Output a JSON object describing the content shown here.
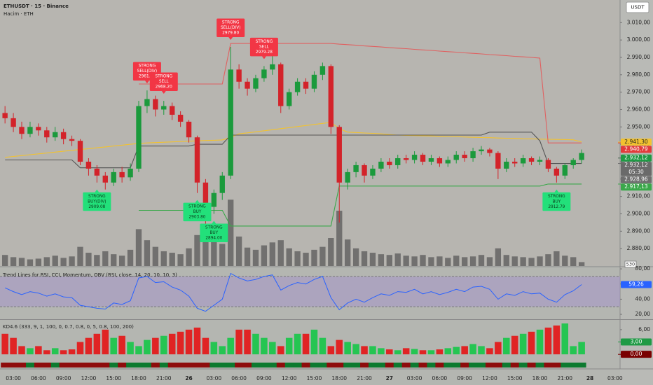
{
  "chart_data": [
    {
      "type": "candlestick",
      "title": "ETHUSDT · 15 · Binance",
      "subtitle": "Hacim · ETH",
      "currency": "USDT",
      "up_color": "#1b9a3c",
      "down_color": "#d3232a",
      "volume_color": "#5a5a5a",
      "xlim": [
        -0.6,
        73.6
      ],
      "xticks": [
        {
          "value": 1,
          "label": "03:00"
        },
        {
          "value": 4,
          "label": "06:00"
        },
        {
          "value": 7,
          "label": "09:00"
        },
        {
          "value": 10,
          "label": "12:00"
        },
        {
          "value": 13,
          "label": "15:00"
        },
        {
          "value": 16,
          "label": "18:00"
        },
        {
          "value": 19,
          "label": "21:00"
        },
        {
          "value": 22,
          "label": "26"
        },
        {
          "value": 25,
          "label": "03:00"
        },
        {
          "value": 28,
          "label": "06:00"
        },
        {
          "value": 31,
          "label": "09:00"
        },
        {
          "value": 34,
          "label": "12:00"
        },
        {
          "value": 37,
          "label": "15:00"
        },
        {
          "value": 40,
          "label": "18:00"
        },
        {
          "value": 43,
          "label": "21:00"
        },
        {
          "value": 46,
          "label": "27"
        },
        {
          "value": 49,
          "label": "03:00"
        },
        {
          "value": 52,
          "label": "06:00"
        },
        {
          "value": 55,
          "label": "09:00"
        },
        {
          "value": 58,
          "label": "12:00"
        },
        {
          "value": 61,
          "label": "15:00"
        },
        {
          "value": 64,
          "label": "18:00"
        },
        {
          "value": 67,
          "label": "21:00"
        },
        {
          "value": 70,
          "label": "28"
        },
        {
          "value": 73,
          "label": "03:00"
        }
      ],
      "ylim": [
        2870,
        3023
      ],
      "yticks": [
        {
          "value": 2880,
          "label": "2.880,00"
        },
        {
          "value": 2890,
          "label": "2.890,00"
        },
        {
          "value": 2900,
          "label": "2.900,00"
        },
        {
          "value": 2910,
          "label": "2.910,00"
        },
        {
          "value": 2920,
          "label": "2.920,00"
        },
        {
          "value": 2930,
          "label": "2.930,00"
        },
        {
          "value": 2940,
          "label": "2.940,00"
        },
        {
          "value": 2950,
          "label": "2.950,00"
        },
        {
          "value": 2960,
          "label": "2.960,00"
        },
        {
          "value": 2970,
          "label": "2.970,00"
        },
        {
          "value": 2980,
          "label": "2.980,00"
        },
        {
          "value": 2990,
          "label": "2.990,00"
        },
        {
          "value": 3000,
          "label": "3.000,00"
        },
        {
          "value": 3010,
          "label": "3.010,00"
        }
      ],
      "open": [
        2958,
        2955,
        2950,
        2946,
        2950,
        2948,
        2944,
        2947,
        2943,
        2942,
        2930,
        2926,
        2922,
        2918,
        2924,
        2921,
        2926,
        2962,
        2966,
        2960,
        2962,
        2957,
        2953,
        2944,
        2918,
        2904,
        2912,
        2922,
        2983,
        2976,
        2972,
        2978,
        2983,
        2986,
        2962,
        2970,
        2976,
        2972,
        2980,
        2985,
        2950,
        2918,
        2924,
        2928,
        2922,
        2926,
        2930,
        2928,
        2932,
        2931,
        2934,
        2930,
        2932,
        2929,
        2931,
        2934,
        2932,
        2936,
        2937,
        2935,
        2926,
        2930,
        2929,
        2932,
        2930,
        2931,
        2926,
        2922,
        2928,
        2931
      ],
      "high": [
        2962,
        2958,
        2953,
        2953,
        2952,
        2950,
        2950,
        2949,
        2945,
        2943,
        2932,
        2928,
        2924,
        2926,
        2927,
        2929,
        2965,
        2971,
        2968,
        2965,
        2964,
        2959,
        2954,
        2945,
        2920,
        2914,
        2924,
        2996,
        2986,
        2978,
        2980,
        2985,
        2993,
        2987,
        2972,
        2978,
        2978,
        2982,
        2987,
        2986,
        2951,
        2926,
        2930,
        2929,
        2928,
        2932,
        2932,
        2934,
        2934,
        2936,
        2935,
        2934,
        2933,
        2933,
        2936,
        2936,
        2938,
        2939,
        2938,
        2936,
        2932,
        2932,
        2934,
        2933,
        2933,
        2932,
        2927,
        2929,
        2932,
        2937
      ],
      "low": [
        2952,
        2947,
        2943,
        2944,
        2945,
        2941,
        2942,
        2940,
        2939,
        2928,
        2922,
        2918,
        2914,
        2916,
        2918,
        2919,
        2924,
        2958,
        2956,
        2957,
        2954,
        2950,
        2941,
        2912,
        2894,
        2900,
        2908,
        2920,
        2972,
        2968,
        2970,
        2976,
        2980,
        2958,
        2960,
        2968,
        2969,
        2970,
        2977,
        2946,
        2895,
        2914,
        2921,
        2918,
        2920,
        2924,
        2926,
        2926,
        2929,
        2929,
        2928,
        2928,
        2927,
        2927,
        2929,
        2930,
        2930,
        2934,
        2933,
        2920,
        2924,
        2927,
        2927,
        2928,
        2928,
        2924,
        2918,
        2920,
        2926,
        2929
      ],
      "close": [
        2955,
        2950,
        2946,
        2950,
        2948,
        2944,
        2947,
        2943,
        2942,
        2930,
        2926,
        2922,
        2918,
        2924,
        2921,
        2926,
        2962,
        2966,
        2960,
        2962,
        2957,
        2953,
        2944,
        2918,
        2904,
        2912,
        2922,
        2983,
        2976,
        2972,
        2978,
        2983,
        2986,
        2962,
        2970,
        2976,
        2972,
        2980,
        2985,
        2950,
        2918,
        2924,
        2928,
        2922,
        2926,
        2930,
        2928,
        2932,
        2931,
        2934,
        2930,
        2932,
        2929,
        2931,
        2934,
        2932,
        2936,
        2937,
        2935,
        2926,
        2930,
        2929,
        2932,
        2930,
        2931,
        2926,
        2922,
        2928,
        2931,
        2935
      ],
      "volume": [
        1500,
        1200,
        1100,
        900,
        1000,
        1200,
        1400,
        1100,
        1300,
        2600,
        1800,
        1500,
        2000,
        1600,
        1400,
        2200,
        5000,
        3500,
        2600,
        2000,
        1800,
        1600,
        2400,
        4200,
        5200,
        3800,
        3000,
        9000,
        4000,
        2500,
        2200,
        2800,
        3200,
        3500,
        2400,
        2000,
        1800,
        2200,
        2600,
        3800,
        7500,
        3600,
        2400,
        2000,
        1800,
        1600,
        1500,
        1700,
        1400,
        1300,
        1500,
        1200,
        1300,
        1100,
        1400,
        1200,
        1300,
        1500,
        1200,
        2400,
        1500,
        1300,
        1200,
        1100,
        1300,
        1600,
        2000,
        1400,
        1200,
        530
      ],
      "volume_ylim": [
        0,
        9500
      ],
      "overlays": [
        {
          "color": "#f2c230",
          "values": [
            2932.5,
            2933,
            2933.5,
            2934,
            2934.5,
            2935,
            2935.5,
            2936,
            2936.5,
            2937,
            2937.5,
            2938,
            2938.5,
            2939,
            2939.5,
            2940,
            2940.5,
            2940.8,
            2941,
            2941.2,
            2941.4,
            2941.6,
            2941.8,
            2942,
            2942.2,
            2942.3,
            2942.5,
            2944,
            2946,
            2946.6,
            2947.2,
            2947.8,
            2948.4,
            2949,
            2949.6,
            2950.2,
            2950.8,
            2951.4,
            2952,
            2952.6,
            2949,
            2947,
            2946.8,
            2946.5,
            2946.3,
            2946,
            2945.6,
            2945.3,
            2945.1,
            2945,
            2944.9,
            2944.8,
            2944.6,
            2944.5,
            2944.4,
            2944.2,
            2944,
            2943.9,
            2943.8,
            2943.6,
            2943.5,
            2943.4,
            2943.2,
            2943.1,
            2943,
            2942.9,
            2942.8,
            2942.7,
            2942.6,
            2941.3
          ]
        },
        {
          "color": "#555555",
          "values": [
            2931,
            2931,
            2931,
            2931,
            2931,
            2931,
            2931,
            2931,
            2931,
            2926.5,
            2926.5,
            2926.5,
            2926.5,
            2926.5,
            2926.5,
            2926.5,
            2939,
            2939,
            2939,
            2939,
            2939,
            2939,
            2939,
            2940,
            2940,
            2940,
            2940,
            2945.3,
            2945.3,
            2945.3,
            2945.3,
            2945.3,
            2945.3,
            2945.3,
            2945.3,
            2945.3,
            2945.3,
            2945.3,
            2945.3,
            2945.3,
            2945.3,
            2945.3,
            2945.3,
            2945.3,
            2945.3,
            2945.3,
            2945.3,
            2945.3,
            2945.3,
            2945.3,
            2945.3,
            2945.3,
            2945.3,
            2945.3,
            2945.3,
            2945.3,
            2945.3,
            2945.3,
            2947,
            2947,
            2947,
            2947,
            2947,
            2947,
            2942,
            2928.96,
            2928.96,
            2928.96,
            2928.96,
            2928.96
          ]
        },
        {
          "color": "#e06060",
          "values": [
            null,
            null,
            null,
            null,
            null,
            null,
            null,
            null,
            null,
            null,
            null,
            null,
            null,
            null,
            null,
            null,
            2974.7,
            2974.7,
            2974.7,
            2974.7,
            2974.7,
            2974.7,
            2974.7,
            2974.7,
            2974.7,
            2974.7,
            2974.7,
            2998,
            2998,
            2998,
            2998,
            2998,
            2998,
            2998,
            2998,
            2998,
            2998,
            2998,
            2998,
            2998,
            2997.6,
            2997.3,
            2997,
            2996.6,
            2996.3,
            2996,
            2995.6,
            2995.3,
            2995,
            2994.6,
            2994.3,
            2994,
            2993.6,
            2993.3,
            2993,
            2992.6,
            2992.3,
            2992,
            2991.6,
            2991.3,
            2991,
            2990.6,
            2990.3,
            2990,
            2989.6,
            2940.79,
            2940.79,
            2940.79,
            2940.79,
            2940.79
          ]
        },
        {
          "color": "#3aa84a",
          "values": [
            null,
            null,
            null,
            null,
            null,
            null,
            null,
            null,
            null,
            null,
            null,
            null,
            null,
            null,
            null,
            null,
            2902,
            2902,
            2902,
            2902,
            2902,
            2902,
            2902,
            2902,
            2902,
            2902,
            2902,
            2893,
            2893,
            2893,
            2893,
            2893,
            2893,
            2893,
            2893,
            2893,
            2893,
            2893,
            2893,
            2893,
            2916,
            2916,
            2916,
            2916,
            2916,
            2916,
            2916,
            2916,
            2916,
            2916,
            2916,
            2916,
            2916,
            2916,
            2916,
            2916,
            2916,
            2916,
            2916,
            2916,
            2916,
            2916,
            2916,
            2916,
            2916,
            2917.13,
            2917.13,
            2917.13,
            2917.13,
            2917.13
          ]
        }
      ],
      "sell_color": "#f23645",
      "buy_color": "#22e07a",
      "signals": [
        {
          "kind": "buy",
          "candle": 11,
          "lines": [
            "STRONG",
            "BUY(DIV)",
            "2909.08"
          ]
        },
        {
          "kind": "sell",
          "candle": 17,
          "lines": [
            "STRONG",
            "SELL(DIV)",
            "2961.14"
          ]
        },
        {
          "kind": "sell",
          "candle": 19,
          "lines": [
            "STRONG",
            "SELL",
            "2968.20"
          ]
        },
        {
          "kind": "buy",
          "candle": 23,
          "lines": [
            "STRONG",
            "BUY",
            "2903.80"
          ]
        },
        {
          "kind": "buy",
          "candle": 25,
          "lines": [
            "STRONG",
            "BUY",
            "2894.00"
          ]
        },
        {
          "kind": "sell",
          "candle": 27,
          "lines": [
            "STRONG",
            "SELL(DIV)",
            "2979.80"
          ]
        },
        {
          "kind": "sell",
          "candle": 31,
          "lines": [
            "STRONG",
            "SELL",
            "2979.28"
          ]
        },
        {
          "kind": "buy",
          "candle": 66,
          "lines": [
            "STRONG",
            "BUY",
            "2912.79"
          ]
        }
      ],
      "price_labels": [
        {
          "value": 2941.3,
          "label": "2.941,30",
          "color": "#f2c230",
          "text_color": "#222222"
        },
        {
          "value": 2940.79,
          "label": "2.940,79",
          "color": "#e23a3a",
          "text_color": "#ffffff"
        },
        {
          "value": 2932.12,
          "label": "2.932,12",
          "color": "#1f9a45",
          "text_color": "#ffffff"
        },
        {
          "value": 2932.12,
          "label": "2.932,12",
          "color": "#6a6a6a",
          "text_color": "#ffffff",
          "countdown": "05:30"
        },
        {
          "value": 2928.96,
          "label": "2.928,96",
          "color": "#6e6e6e",
          "text_color": "#ffffff"
        },
        {
          "value": 2917.13,
          "label": "2.917,13",
          "color": "#3aa84a",
          "text_color": "#ffffff"
        }
      ]
    },
    {
      "type": "line",
      "title": "Trend Lines for RSI, CCI, Momentum, OBV (RSI, close, 14, 20, 10, 10, 3)",
      "color": "#2962ff",
      "band": [
        30,
        70
      ],
      "band_color": "#a596c8",
      "ylim": [
        14.5,
        81
      ],
      "yticks": [
        {
          "value": 20,
          "label": "20,00"
        },
        {
          "value": 40,
          "label": "40,00"
        },
        {
          "value": 60,
          "label": "60,00"
        },
        {
          "value": 80,
          "label": "80,00"
        }
      ],
      "values": [
        55,
        50,
        46,
        50,
        48,
        44,
        47,
        43,
        42,
        32,
        30,
        28,
        27,
        35,
        33,
        38,
        68,
        70,
        62,
        63,
        56,
        52,
        44,
        28,
        24,
        32,
        40,
        74,
        68,
        64,
        66,
        70,
        72,
        52,
        58,
        62,
        60,
        66,
        70,
        42,
        26,
        35,
        40,
        36,
        42,
        47,
        45,
        50,
        49,
        53,
        47,
        50,
        46,
        49,
        53,
        50,
        56,
        57,
        53,
        40,
        47,
        45,
        50,
        47,
        48,
        40,
        36,
        46,
        51,
        59.26
      ],
      "last_label": "59,26"
    },
    {
      "type": "bar",
      "title": "KD4.6 (333, 9, 1, 100, 0, 0.7, 0.8, 0, 5, 0.8, 100, 200)",
      "up_color": "#25c552",
      "down_color": "#e02424",
      "strip_up_color": "#0d7a30",
      "strip_down_color": "#8e0c0c",
      "ylim": [
        -1.5,
        8.2
      ],
      "yticks": [
        {
          "value": 0,
          "label": "0,00"
        },
        {
          "value": 3,
          "label": "3,00"
        },
        {
          "value": 6,
          "label": "6,00"
        }
      ],
      "values": [
        5,
        4,
        2,
        1.5,
        2,
        1,
        1.5,
        1,
        1.2,
        3,
        4,
        5,
        6,
        4,
        4.5,
        3,
        2,
        3.5,
        4,
        4.5,
        5,
        5.5,
        6,
        6.5,
        4,
        3,
        2,
        4,
        6,
        6,
        5,
        4,
        3,
        2,
        4,
        5,
        5,
        6,
        4,
        2,
        3.5,
        3,
        2.5,
        2,
        2,
        1.5,
        1.2,
        1,
        1.5,
        1.3,
        1,
        1,
        1.2,
        1.5,
        1.8,
        2,
        2.5,
        2,
        1.5,
        3,
        4,
        4.5,
        5,
        5.5,
        6,
        6.5,
        7,
        7.5,
        2,
        3
      ],
      "last_labels": [
        {
          "value": 3,
          "label": "3,00",
          "color": "#1f9a45"
        },
        {
          "value": 0,
          "label": "0,00",
          "color": "#7a0000"
        }
      ]
    }
  ]
}
